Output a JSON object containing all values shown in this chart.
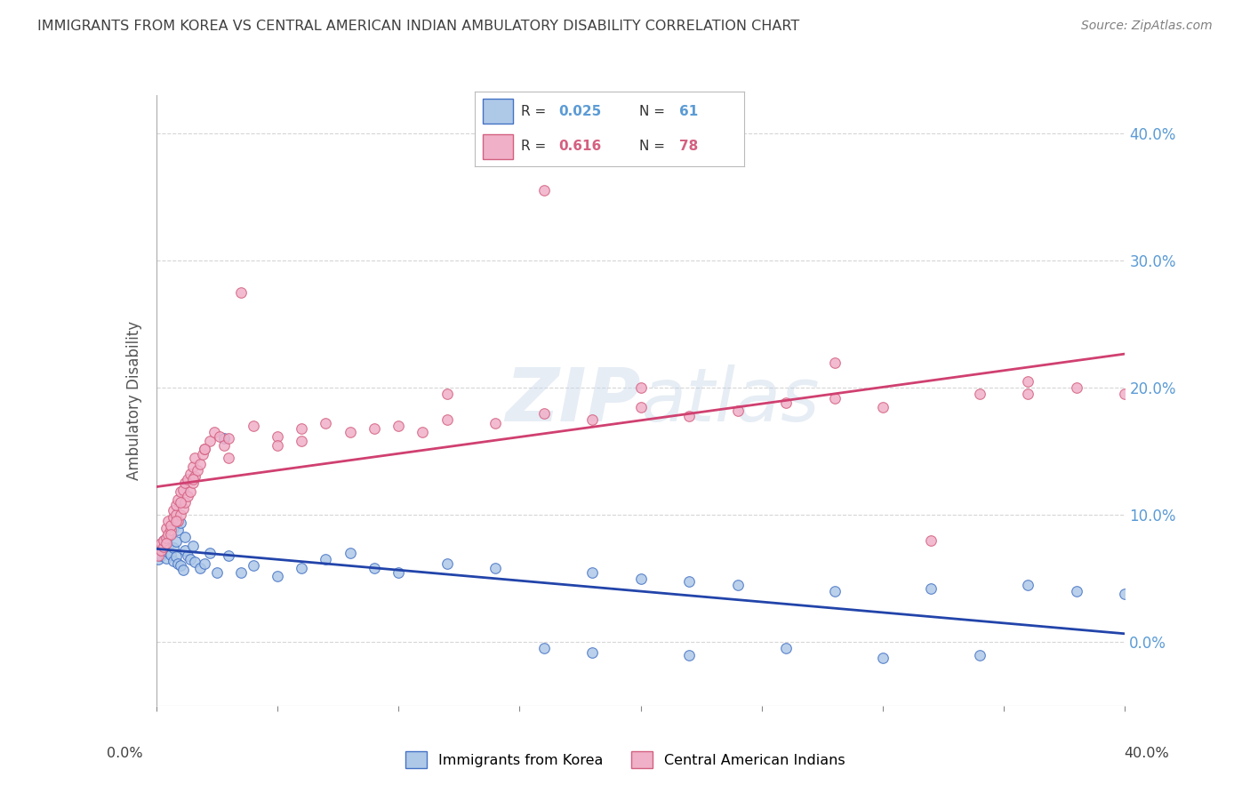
{
  "title": "IMMIGRANTS FROM KOREA VS CENTRAL AMERICAN INDIAN AMBULATORY DISABILITY CORRELATION CHART",
  "source": "Source: ZipAtlas.com",
  "ylabel": "Ambulatory Disability",
  "ytick_values": [
    0.0,
    0.1,
    0.2,
    0.3,
    0.4
  ],
  "xlim": [
    0.0,
    0.4
  ],
  "ylim": [
    -0.05,
    0.43
  ],
  "korea_color_fill": "#aec8e8",
  "korea_color_edge": "#4472c4",
  "central_color_fill": "#f0b0c8",
  "central_color_edge": "#d46080",
  "korea_line_color": "#2244aa",
  "central_line_color": "#d04070",
  "watermark": "ZIPatlas",
  "background_color": "#ffffff",
  "grid_color": "#cccccc",
  "title_color": "#404040",
  "source_color": "#808080",
  "yaxis_color": "#5b9bd5",
  "korea_R": 0.025,
  "korea_N": 61,
  "central_R": 0.616,
  "central_N": 78,
  "korea_x": [
    0.001,
    0.002,
    0.002,
    0.003,
    0.003,
    0.003,
    0.004,
    0.004,
    0.004,
    0.005,
    0.005,
    0.005,
    0.006,
    0.006,
    0.007,
    0.007,
    0.007,
    0.008,
    0.008,
    0.009,
    0.009,
    0.01,
    0.01,
    0.011,
    0.012,
    0.012,
    0.013,
    0.014,
    0.015,
    0.016,
    0.018,
    0.02,
    0.022,
    0.025,
    0.028,
    0.03,
    0.035,
    0.04,
    0.05,
    0.06,
    0.07,
    0.08,
    0.09,
    0.1,
    0.12,
    0.14,
    0.16,
    0.18,
    0.2,
    0.22,
    0.24,
    0.26,
    0.28,
    0.3,
    0.32,
    0.34,
    0.36,
    0.38,
    0.4,
    0.22,
    0.18
  ],
  "korea_y": [
    0.065,
    0.068,
    0.072,
    0.07,
    0.075,
    0.08,
    0.066,
    0.073,
    0.078,
    0.071,
    0.076,
    0.082,
    0.069,
    0.085,
    0.064,
    0.074,
    0.09,
    0.067,
    0.079,
    0.062,
    0.088,
    0.06,
    0.094,
    0.057,
    0.072,
    0.083,
    0.068,
    0.065,
    0.076,
    0.063,
    0.058,
    0.062,
    0.07,
    0.055,
    0.16,
    0.068,
    0.055,
    0.06,
    0.052,
    0.058,
    0.065,
    0.07,
    0.058,
    0.055,
    0.062,
    0.058,
    -0.005,
    -0.008,
    0.05,
    -0.01,
    0.045,
    -0.005,
    0.04,
    -0.012,
    0.042,
    -0.01,
    0.045,
    0.04,
    0.038,
    0.048,
    0.055
  ],
  "central_x": [
    0.001,
    0.002,
    0.002,
    0.003,
    0.003,
    0.004,
    0.004,
    0.005,
    0.005,
    0.006,
    0.006,
    0.007,
    0.007,
    0.008,
    0.008,
    0.009,
    0.009,
    0.01,
    0.01,
    0.011,
    0.011,
    0.012,
    0.012,
    0.013,
    0.013,
    0.014,
    0.014,
    0.015,
    0.015,
    0.016,
    0.016,
    0.017,
    0.018,
    0.019,
    0.02,
    0.022,
    0.024,
    0.026,
    0.028,
    0.03,
    0.035,
    0.04,
    0.05,
    0.06,
    0.07,
    0.08,
    0.09,
    0.1,
    0.11,
    0.12,
    0.14,
    0.16,
    0.18,
    0.2,
    0.22,
    0.24,
    0.26,
    0.28,
    0.3,
    0.32,
    0.34,
    0.36,
    0.38,
    0.4,
    0.05,
    0.03,
    0.02,
    0.015,
    0.01,
    0.008,
    0.006,
    0.004,
    0.12,
    0.2,
    0.28,
    0.36,
    0.06,
    0.16
  ],
  "central_y": [
    0.068,
    0.072,
    0.078,
    0.075,
    0.08,
    0.082,
    0.09,
    0.085,
    0.095,
    0.088,
    0.092,
    0.098,
    0.104,
    0.1,
    0.108,
    0.095,
    0.112,
    0.1,
    0.118,
    0.105,
    0.12,
    0.11,
    0.125,
    0.115,
    0.128,
    0.118,
    0.132,
    0.125,
    0.138,
    0.13,
    0.145,
    0.135,
    0.14,
    0.148,
    0.152,
    0.158,
    0.165,
    0.162,
    0.155,
    0.16,
    0.275,
    0.17,
    0.162,
    0.168,
    0.172,
    0.165,
    0.168,
    0.17,
    0.165,
    0.175,
    0.172,
    0.18,
    0.175,
    0.185,
    0.178,
    0.182,
    0.188,
    0.192,
    0.185,
    0.08,
    0.195,
    0.195,
    0.2,
    0.195,
    0.155,
    0.145,
    0.152,
    0.128,
    0.11,
    0.095,
    0.085,
    0.078,
    0.195,
    0.2,
    0.22,
    0.205,
    0.158,
    0.355
  ]
}
